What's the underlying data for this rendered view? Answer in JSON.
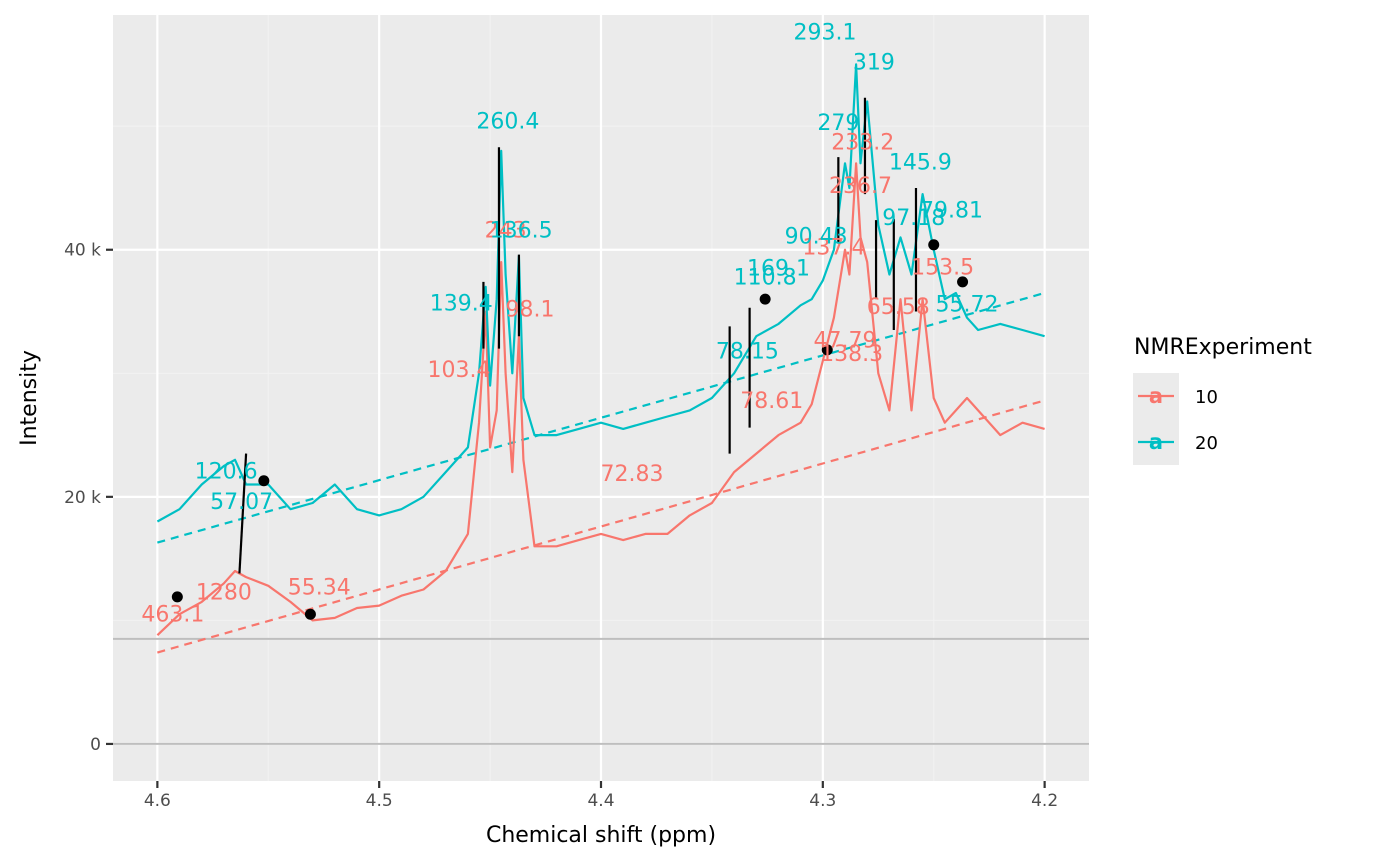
{
  "chart_data": {
    "type": "line",
    "title": "",
    "xlabel": "Chemical shift (ppm)",
    "ylabel": "Intensity",
    "x_reversed": true,
    "xlim": [
      4.62,
      4.18
    ],
    "ylim": [
      -3000,
      59000
    ],
    "x_ticks": [
      {
        "value": 4.6,
        "label": "4.6"
      },
      {
        "value": 4.5,
        "label": "4.5"
      },
      {
        "value": 4.4,
        "label": "4.4"
      },
      {
        "value": 4.3,
        "label": "4.3"
      },
      {
        "value": 4.2,
        "label": "4.2"
      }
    ],
    "y_ticks": [
      {
        "value": 0,
        "label": "0"
      },
      {
        "value": 20000,
        "label": "20 k"
      },
      {
        "value": 40000,
        "label": "40 k"
      }
    ],
    "grid": true,
    "legend": {
      "title": "NMRExperiment",
      "position": "right",
      "key_glyph": "a"
    },
    "threshold_line": 8500,
    "zero_line": 0,
    "colors": {
      "10": "#F8766D",
      "20": "#00BFC4",
      "panel": "#EBEBEB",
      "grid_major": "#FFFFFF",
      "grid_minor": "#F2F2F2",
      "hline": "#BEBEBE",
      "marker": "#000000"
    },
    "series": [
      {
        "name": "10",
        "spectrum": [
          [
            4.6,
            8800
          ],
          [
            4.59,
            10500
          ],
          [
            4.58,
            11500
          ],
          [
            4.57,
            13000
          ],
          [
            4.565,
            14000
          ],
          [
            4.56,
            13500
          ],
          [
            4.55,
            12800
          ],
          [
            4.54,
            11500
          ],
          [
            4.53,
            10000
          ],
          [
            4.52,
            10200
          ],
          [
            4.51,
            11000
          ],
          [
            4.5,
            11200
          ],
          [
            4.49,
            12000
          ],
          [
            4.48,
            12500
          ],
          [
            4.47,
            14000
          ],
          [
            4.46,
            17000
          ],
          [
            4.455,
            26000
          ],
          [
            4.452,
            35000
          ],
          [
            4.45,
            24000
          ],
          [
            4.447,
            27000
          ],
          [
            4.445,
            39000
          ],
          [
            4.443,
            30000
          ],
          [
            4.44,
            22000
          ],
          [
            4.437,
            33000
          ],
          [
            4.435,
            23000
          ],
          [
            4.43,
            16000
          ],
          [
            4.42,
            16000
          ],
          [
            4.41,
            16500
          ],
          [
            4.4,
            17000
          ],
          [
            4.39,
            16500
          ],
          [
            4.38,
            17000
          ],
          [
            4.37,
            17000
          ],
          [
            4.36,
            18500
          ],
          [
            4.35,
            19500
          ],
          [
            4.34,
            22000
          ],
          [
            4.33,
            23500
          ],
          [
            4.32,
            25000
          ],
          [
            4.31,
            26000
          ],
          [
            4.305,
            27500
          ],
          [
            4.3,
            31000
          ],
          [
            4.295,
            34500
          ],
          [
            4.29,
            40000
          ],
          [
            4.288,
            38000
          ],
          [
            4.285,
            47000
          ],
          [
            4.283,
            41000
          ],
          [
            4.28,
            39000
          ],
          [
            4.275,
            30000
          ],
          [
            4.27,
            27000
          ],
          [
            4.265,
            36000
          ],
          [
            4.26,
            27000
          ],
          [
            4.255,
            36000
          ],
          [
            4.25,
            28000
          ],
          [
            4.245,
            26000
          ],
          [
            4.24,
            27000
          ],
          [
            4.235,
            28000
          ],
          [
            4.23,
            27000
          ],
          [
            4.22,
            25000
          ],
          [
            4.21,
            26000
          ],
          [
            4.2,
            25500
          ]
        ],
        "baseline": {
          "x": [
            4.6,
            4.2
          ],
          "y": [
            7400,
            27800
          ]
        },
        "peak_labels": [
          {
            "x": 4.593,
            "y": 9900,
            "label": "463.1"
          },
          {
            "x": 4.57,
            "y": 11700,
            "label": "1280"
          },
          {
            "x": 4.527,
            "y": 12100,
            "label": "55.34"
          },
          {
            "x": 4.464,
            "y": 29700,
            "label": "103.4"
          },
          {
            "x": 4.432,
            "y": 34600,
            "label": "98.1"
          },
          {
            "x": 4.443,
            "y": 41000,
            "label": "243"
          },
          {
            "x": 4.386,
            "y": 21300,
            "label": "72.83"
          },
          {
            "x": 4.323,
            "y": 27200,
            "label": "78.61"
          },
          {
            "x": 4.29,
            "y": 32100,
            "label": "47.79"
          },
          {
            "x": 4.287,
            "y": 31000,
            "label": "138.3"
          },
          {
            "x": 4.295,
            "y": 39600,
            "label": "137.4"
          },
          {
            "x": 4.283,
            "y": 44600,
            "label": "236.7"
          },
          {
            "x": 4.282,
            "y": 48100,
            "label": "233.2"
          },
          {
            "x": 4.266,
            "y": 34800,
            "label": "65.58"
          },
          {
            "x": 4.246,
            "y": 38000,
            "label": "153.5"
          }
        ]
      },
      {
        "name": "20",
        "spectrum": [
          [
            4.6,
            18000
          ],
          [
            4.59,
            19000
          ],
          [
            4.58,
            21000
          ],
          [
            4.57,
            22500
          ],
          [
            4.565,
            23000
          ],
          [
            4.56,
            21000
          ],
          [
            4.55,
            21000
          ],
          [
            4.54,
            19000
          ],
          [
            4.53,
            19500
          ],
          [
            4.52,
            21000
          ],
          [
            4.51,
            19000
          ],
          [
            4.5,
            18500
          ],
          [
            4.49,
            19000
          ],
          [
            4.48,
            20000
          ],
          [
            4.47,
            22000
          ],
          [
            4.46,
            24000
          ],
          [
            4.455,
            30000
          ],
          [
            4.452,
            37000
          ],
          [
            4.45,
            29000
          ],
          [
            4.447,
            36000
          ],
          [
            4.445,
            48000
          ],
          [
            4.443,
            38000
          ],
          [
            4.44,
            30000
          ],
          [
            4.437,
            39500
          ],
          [
            4.435,
            28000
          ],
          [
            4.43,
            25000
          ],
          [
            4.42,
            25000
          ],
          [
            4.41,
            25500
          ],
          [
            4.4,
            26000
          ],
          [
            4.39,
            25500
          ],
          [
            4.38,
            26000
          ],
          [
            4.37,
            26500
          ],
          [
            4.36,
            27000
          ],
          [
            4.35,
            28000
          ],
          [
            4.34,
            30000
          ],
          [
            4.33,
            33000
          ],
          [
            4.32,
            34000
          ],
          [
            4.31,
            35500
          ],
          [
            4.305,
            36000
          ],
          [
            4.3,
            37500
          ],
          [
            4.295,
            40000
          ],
          [
            4.29,
            47000
          ],
          [
            4.288,
            45000
          ],
          [
            4.285,
            55000
          ],
          [
            4.283,
            47000
          ],
          [
            4.28,
            52000
          ],
          [
            4.275,
            42000
          ],
          [
            4.27,
            38000
          ],
          [
            4.265,
            41000
          ],
          [
            4.26,
            38000
          ],
          [
            4.255,
            44500
          ],
          [
            4.25,
            40000
          ],
          [
            4.245,
            36000
          ],
          [
            4.24,
            36500
          ],
          [
            4.235,
            34500
          ],
          [
            4.23,
            33500
          ],
          [
            4.22,
            34000
          ],
          [
            4.21,
            33500
          ],
          [
            4.2,
            33000
          ]
        ],
        "baseline": {
          "x": [
            4.6,
            4.2
          ],
          "y": [
            16300,
            36500
          ]
        },
        "peak_labels": [
          {
            "x": 4.569,
            "y": 21500,
            "label": "120.6"
          },
          {
            "x": 4.562,
            "y": 19000,
            "label": "57.07"
          },
          {
            "x": 4.463,
            "y": 35100,
            "label": "139.4"
          },
          {
            "x": 4.442,
            "y": 49800,
            "label": "260.4"
          },
          {
            "x": 4.436,
            "y": 41000,
            "label": "136.5"
          },
          {
            "x": 4.334,
            "y": 31200,
            "label": "78.15"
          },
          {
            "x": 4.326,
            "y": 37200,
            "label": "110.8"
          },
          {
            "x": 4.32,
            "y": 37900,
            "label": "169.1"
          },
          {
            "x": 4.303,
            "y": 40500,
            "label": "90.43"
          },
          {
            "x": 4.293,
            "y": 49700,
            "label": "279"
          },
          {
            "x": 4.299,
            "y": 57000,
            "label": "293.1"
          },
          {
            "x": 4.277,
            "y": 54600,
            "label": "319"
          },
          {
            "x": 4.256,
            "y": 46500,
            "label": "145.9"
          },
          {
            "x": 4.259,
            "y": 42000,
            "label": "97.18"
          },
          {
            "x": 4.242,
            "y": 42600,
            "label": "79.81"
          },
          {
            "x": 4.235,
            "y": 35000,
            "label": "55.72"
          }
        ]
      }
    ],
    "connectors": [
      [
        4.563,
        13800,
        4.56,
        23500
      ],
      [
        4.453,
        32000,
        4.453,
        37400
      ],
      [
        4.446,
        32000,
        4.446,
        48300
      ],
      [
        4.437,
        33000,
        4.437,
        39600
      ],
      [
        4.342,
        23500,
        4.342,
        33800
      ],
      [
        4.333,
        25600,
        4.333,
        35300
      ],
      [
        4.293,
        40500,
        4.293,
        47500
      ],
      [
        4.281,
        44500,
        4.281,
        52300
      ],
      [
        4.276,
        36000,
        4.276,
        42400
      ],
      [
        4.268,
        33500,
        4.268,
        42500
      ],
      [
        4.258,
        35000,
        4.258,
        45000
      ]
    ],
    "markers": [
      [
        4.591,
        11900
      ],
      [
        4.552,
        21300
      ],
      [
        4.531,
        10500
      ],
      [
        4.326,
        36000
      ],
      [
        4.298,
        31900
      ],
      [
        4.25,
        40400
      ],
      [
        4.237,
        37400
      ]
    ]
  }
}
